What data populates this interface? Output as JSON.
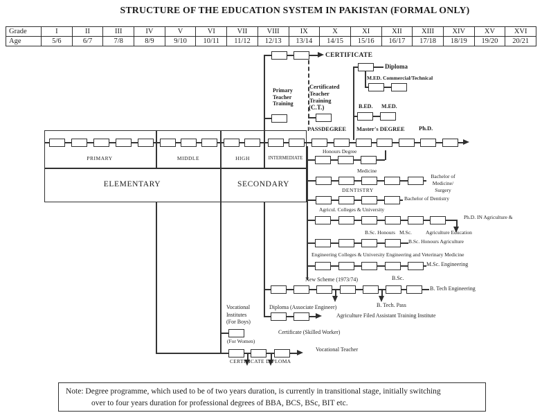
{
  "colors": {
    "ink": "#2f2f2f",
    "paper": "#ffffff"
  },
  "title": "STRUCTURE OF THE EDUCATION SYSTEM IN PAKISTAN (FORMAL ONLY)",
  "grade_table": {
    "grade_label": "Grade",
    "age_label": "Age",
    "grades": [
      "I",
      "II",
      "III",
      "IV",
      "V",
      "VI",
      "VII",
      "VIII",
      "IX",
      "X",
      "XI",
      "XII",
      "XIII",
      "XIV",
      "XV",
      "XVI"
    ],
    "ages": [
      "5/6",
      "6/7",
      "7/8",
      "8/9",
      "9/10",
      "10/11",
      "11/12",
      "12/13",
      "13/14",
      "14/15",
      "15/16",
      "16/17",
      "17/18",
      "18/19",
      "19/20",
      "20/21"
    ]
  },
  "sections": {
    "primary": "PRIMARY",
    "middle": "MIDDLE",
    "high": "HIGH",
    "intermediate": "INTERMEDIATE",
    "elementary": "ELEMENTARY",
    "secondary": "SECONDARY"
  },
  "labels": {
    "certificate": "CERTIFICATE",
    "primary_teacher_training": "Primary\nTeacher\nTraining",
    "certificated_teacher_training": "Certificated\nTeacher\nTraining",
    "ct": "(C.T.)",
    "diploma_top": "Diploma",
    "med_commercial": "M.ED. Commercial/Technical",
    "bed": "B.ED.",
    "med": "M.ED.",
    "passdegree": "PASSDEGREE",
    "masters_degree": "Master's DEGREE",
    "phd": "Ph.D.",
    "honours_degree": "Honours Degree",
    "medicine": "Medicine",
    "bachelor_medicine": "Bachelor of\nMedicine/\nSurgery",
    "dentistry": "DENTISTRY",
    "bachelor_dentistry": "Bachelor of Dentistry",
    "agri_colleges": "Agricul. Colleges & University",
    "phd_agriculture": "Ph.D. IN Agriculture &",
    "agriculture_education": "Agriculture Education",
    "bsc_honours": "B.Sc. Honours",
    "msc": "M.Sc.",
    "bsc_honours_agriculture": "B.Sc. Honours Agriculture",
    "engineering_colleges": "Engineering Colleges & University Engineering and Veterinary Medicine",
    "msc_engineering": "M.Sc. Engineering",
    "new_scheme": "New Scheme (1973/74)",
    "bsc": "B.Sc.",
    "btech_engineering": "B. Tech Engineering",
    "btech_pass": "B. Tech. Pass",
    "vocational_institutes": "Vocational\nInstitutes\n(For Boys)",
    "diploma_associate": "Diploma (Associate Engineer)",
    "agri_field_institute": "Agriculture Filed Assistant Training Institute",
    "certificate_skilled": "Certificate (Skilled Worker)",
    "for_women": "(For Women)",
    "vocational_teacher": "Vocational Teacher",
    "certificate_diploma": "CERTIFICATE DIPLOMA"
  },
  "note": {
    "line1": "Note: Degree programme, which used to be of two years duration, is currently in transitional stage, initially switching",
    "line2": "over to four years duration for professional degrees of BBA, BCS, BSc, BIT etc."
  }
}
